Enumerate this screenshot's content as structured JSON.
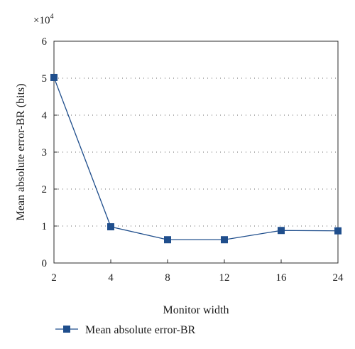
{
  "chart_data": {
    "type": "line",
    "categories": [
      "2",
      "4",
      "8",
      "12",
      "16",
      "24"
    ],
    "series": [
      {
        "name": "Mean absolute error-BR",
        "values": [
          5.02,
          0.98,
          0.63,
          0.63,
          0.88,
          0.87
        ],
        "color": "#1f4e8c",
        "marker": "square"
      }
    ],
    "xlabel": "Monitor width",
    "ylabel": "Mean absolute error-BR (bits)",
    "ylim": [
      0,
      6
    ],
    "yticks": [
      "0",
      "1",
      "2",
      "3",
      "4",
      "5",
      "6"
    ],
    "y_multiplier": {
      "base": "×10",
      "exponent": "4"
    },
    "grid": "dotted horizontal",
    "legend_position": "bottom-left"
  }
}
